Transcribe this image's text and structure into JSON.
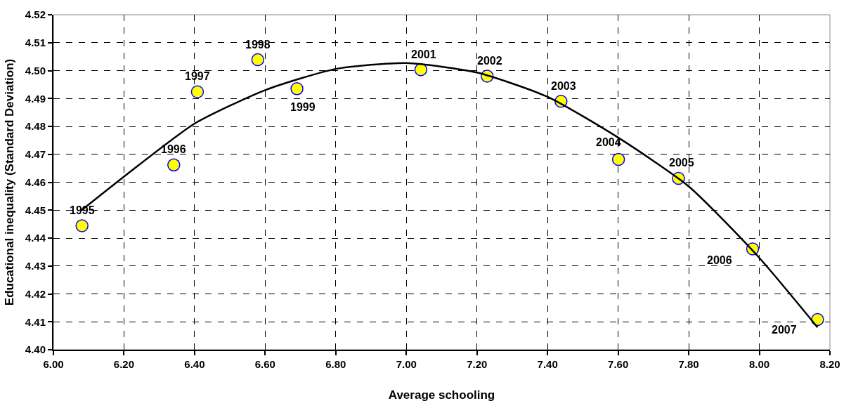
{
  "chart_data": {
    "type": "scatter",
    "xlabel": "Average schooling",
    "ylabel": "Educational inequality (Standard Deviation)",
    "xlim": [
      6.0,
      8.2
    ],
    "xticks": [
      {
        "value": 6.0,
        "label": "6.00"
      },
      {
        "value": 6.2,
        "label": "6.20"
      },
      {
        "value": 6.4,
        "label": "6.40"
      },
      {
        "value": 6.6,
        "label": "6.60"
      },
      {
        "value": 6.8,
        "label": "6.80"
      },
      {
        "value": 7.0,
        "label": "7.00"
      },
      {
        "value": 7.2,
        "label": "7.20"
      },
      {
        "value": 7.4,
        "label": "7.40"
      },
      {
        "value": 7.6,
        "label": "7.60"
      },
      {
        "value": 7.8,
        "label": "7.80"
      },
      {
        "value": 8.0,
        "label": "8.00"
      },
      {
        "value": 8.2,
        "label": "8.20"
      }
    ],
    "ylim": [
      4.4,
      4.52
    ],
    "yticks": [
      {
        "value": 4.4,
        "label": "4.40"
      },
      {
        "value": 4.41,
        "label": "4.41"
      },
      {
        "value": 4.42,
        "label": "4.42"
      },
      {
        "value": 4.43,
        "label": "4.43"
      },
      {
        "value": 4.44,
        "label": "4.44"
      },
      {
        "value": 4.45,
        "label": "4.45"
      },
      {
        "value": 4.46,
        "label": "4.46"
      },
      {
        "value": 4.47,
        "label": "4.47"
      },
      {
        "value": 4.48,
        "label": "4.48"
      },
      {
        "value": 4.49,
        "label": "4.49"
      },
      {
        "value": 4.5,
        "label": "4.50"
      },
      {
        "value": 4.51,
        "label": "4.51"
      },
      {
        "value": 4.52,
        "label": "4.52"
      }
    ],
    "grid": true,
    "marker": "circle",
    "series": [
      {
        "color": "#ffff00",
        "x": [
          6.081,
          6.341,
          6.408,
          6.579,
          6.69,
          7.041,
          7.229,
          7.438,
          7.601,
          7.771,
          7.981,
          8.165
        ],
        "values": [
          4.4444,
          4.4662,
          4.4924,
          4.5039,
          4.4935,
          4.5003,
          4.498,
          4.489,
          4.4682,
          4.4614,
          4.4361,
          4.4108
        ]
      },
      {
        "type": "line",
        "marker": "none",
        "color": "#000000",
        "x": [
          6.08,
          6.2,
          6.4,
          6.6,
          6.8,
          7.0,
          7.2,
          7.4,
          7.6,
          7.8,
          8.0,
          8.165
        ],
        "values": [
          4.45,
          4.462,
          4.481,
          4.493,
          4.5006,
          4.5027,
          4.4993,
          4.4906,
          4.476,
          4.4585,
          4.4329,
          4.408
        ]
      }
    ],
    "annotations": [
      {
        "text": "1995",
        "x": 6.081,
        "y": 4.4444
      },
      {
        "text": "1996",
        "x": 6.341,
        "y": 4.4662
      },
      {
        "text": "1997",
        "x": 6.408,
        "y": 4.4924
      },
      {
        "text": "1998",
        "x": 6.579,
        "y": 4.5039
      },
      {
        "text": "1999",
        "x": 6.69,
        "y": 4.4935
      },
      {
        "text": "2001",
        "x": 7.041,
        "y": 4.5003
      },
      {
        "text": "2002",
        "x": 7.229,
        "y": 4.498
      },
      {
        "text": "2003",
        "x": 7.438,
        "y": 4.489
      },
      {
        "text": "2004",
        "x": 7.601,
        "y": 4.4682
      },
      {
        "text": "2005",
        "x": 7.771,
        "y": 4.4614
      },
      {
        "text": "2006",
        "x": 7.981,
        "y": 4.4361
      },
      {
        "text": "2007",
        "x": 8.165,
        "y": 4.4108
      }
    ]
  }
}
